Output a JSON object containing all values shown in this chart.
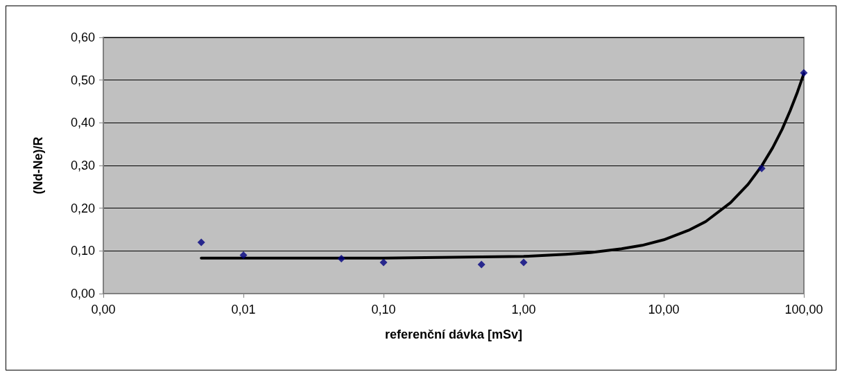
{
  "chart_data": {
    "type": "scatter",
    "xlabel": "referenční dávka [mSv]",
    "ylabel": "(Nd-Ne)/R",
    "log": "x",
    "grid": "y",
    "marker": "diamond",
    "xlim": [
      0.001,
      100
    ],
    "xticks": [
      {
        "value": 0.001,
        "label": "0,00"
      },
      {
        "value": 0.01,
        "label": "0,01"
      },
      {
        "value": 0.1,
        "label": "0,10"
      },
      {
        "value": 1,
        "label": "1,00"
      },
      {
        "value": 10,
        "label": "10,00"
      },
      {
        "value": 100,
        "label": "100,00"
      }
    ],
    "ylim": [
      0,
      0.6
    ],
    "yticks": [
      {
        "value": 0,
        "label": "0,00"
      },
      {
        "value": 0.1,
        "label": "0,10"
      },
      {
        "value": 0.2,
        "label": "0,20"
      },
      {
        "value": 0.3,
        "label": "0,30"
      },
      {
        "value": 0.4,
        "label": "0,40"
      },
      {
        "value": 0.5,
        "label": "0,50"
      },
      {
        "value": 0.6,
        "label": "0,60"
      }
    ],
    "series": [
      {
        "color": "#000080",
        "x": [
          0.005,
          0.01,
          0.05,
          0.1,
          0.5,
          1,
          50,
          100
        ],
        "values": [
          0.12,
          0.09,
          0.082,
          0.073,
          0.068,
          0.073,
          0.293,
          0.517
        ]
      },
      {
        "type": "line",
        "color": "#000000",
        "marker": "none",
        "line_style": "solid",
        "x": [
          0.005,
          0.01,
          0.1,
          1,
          2,
          3,
          5,
          7,
          10,
          15,
          20,
          30,
          40,
          50,
          60,
          70,
          80,
          90,
          100
        ],
        "values": [
          0.083,
          0.083,
          0.083,
          0.087,
          0.092,
          0.096,
          0.105,
          0.113,
          0.126,
          0.148,
          0.169,
          0.213,
          0.256,
          0.299,
          0.342,
          0.385,
          0.429,
          0.472,
          0.515
        ]
      }
    ]
  }
}
